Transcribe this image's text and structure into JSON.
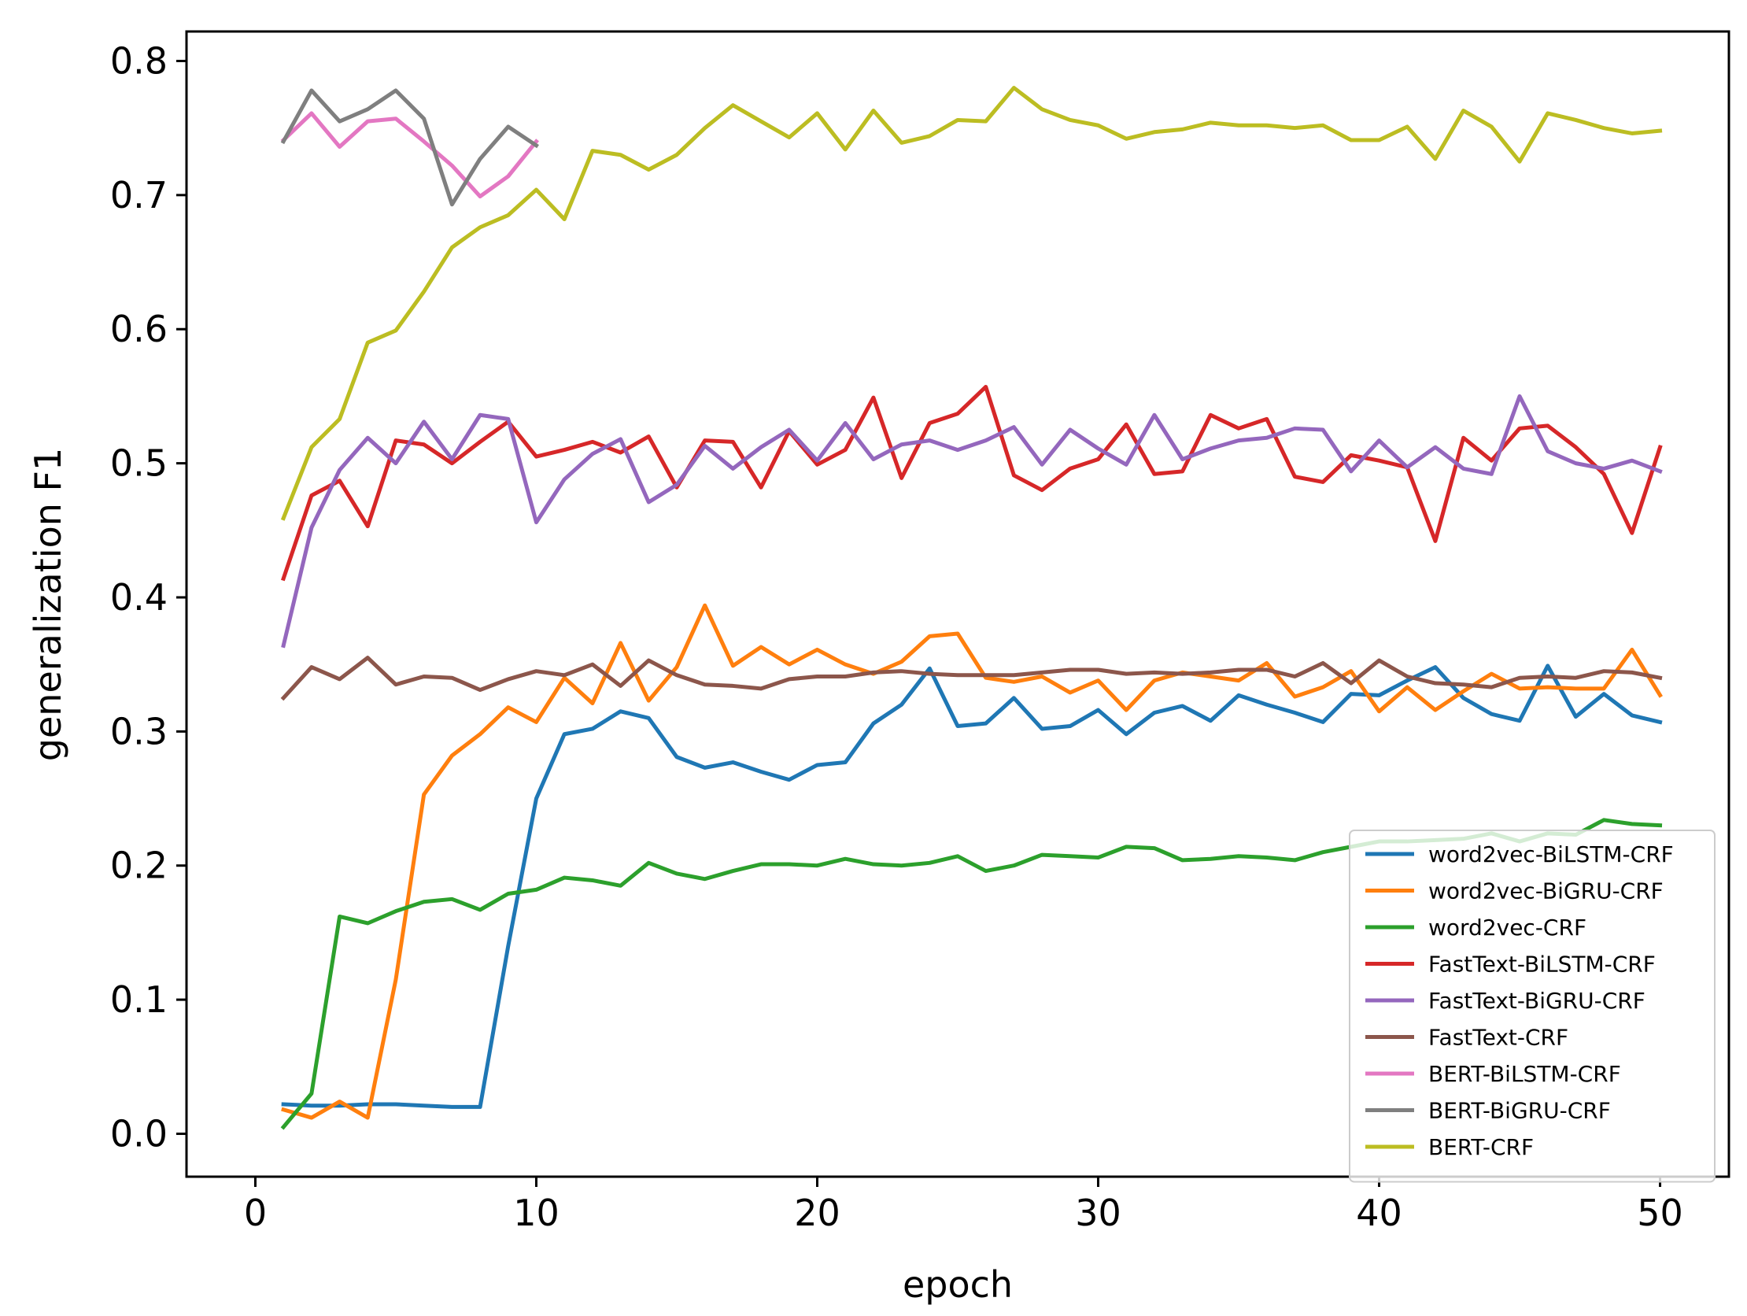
{
  "chart_data": {
    "type": "line",
    "xlabel": "epoch",
    "ylabel": "generalization F1",
    "xlim": [
      -2.45,
      52.45
    ],
    "ylim": [
      -0.032,
      0.822
    ],
    "xticks": [
      0,
      10,
      20,
      30,
      40,
      50
    ],
    "yticks": [
      0.0,
      0.1,
      0.2,
      0.3,
      0.4,
      0.5,
      0.6,
      0.7,
      0.8
    ],
    "xtick_labels": [
      "0",
      "10",
      "20",
      "30",
      "40",
      "50"
    ],
    "ytick_labels": [
      "0.0",
      "0.1",
      "0.2",
      "0.3",
      "0.4",
      "0.5",
      "0.6",
      "0.7",
      "0.8"
    ],
    "legend_position": "lower-right",
    "grid": false,
    "series": [
      {
        "name": "word2vec-BiLSTM-CRF",
        "color": "#1f77b4",
        "x_start": 1,
        "values": [
          0.022,
          0.021,
          0.021,
          0.022,
          0.022,
          0.021,
          0.02,
          0.02,
          0.14,
          0.25,
          0.298,
          0.302,
          0.315,
          0.31,
          0.281,
          0.273,
          0.277,
          0.27,
          0.264,
          0.275,
          0.277,
          0.306,
          0.32,
          0.347,
          0.304,
          0.306,
          0.325,
          0.302,
          0.304,
          0.316,
          0.298,
          0.314,
          0.319,
          0.308,
          0.327,
          0.32,
          0.314,
          0.307,
          0.328,
          0.327,
          0.338,
          0.348,
          0.325,
          0.313,
          0.308,
          0.349,
          0.311,
          0.328,
          0.312,
          0.307
        ]
      },
      {
        "name": "word2vec-BiGRU-CRF",
        "color": "#ff7f0e",
        "x_start": 1,
        "values": [
          0.018,
          0.012,
          0.024,
          0.012,
          0.115,
          0.253,
          0.282,
          0.298,
          0.318,
          0.307,
          0.34,
          0.321,
          0.366,
          0.323,
          0.348,
          0.394,
          0.349,
          0.363,
          0.35,
          0.361,
          0.35,
          0.343,
          0.352,
          0.371,
          0.373,
          0.34,
          0.337,
          0.341,
          0.329,
          0.338,
          0.316,
          0.338,
          0.344,
          0.341,
          0.338,
          0.351,
          0.326,
          0.333,
          0.345,
          0.315,
          0.333,
          0.316,
          0.33,
          0.343,
          0.332,
          0.333,
          0.332,
          0.332,
          0.361,
          0.327
        ]
      },
      {
        "name": "word2vec-CRF",
        "color": "#2ca02c",
        "x_start": 1,
        "values": [
          0.005,
          0.03,
          0.162,
          0.157,
          0.166,
          0.173,
          0.175,
          0.167,
          0.179,
          0.182,
          0.191,
          0.189,
          0.185,
          0.202,
          0.194,
          0.19,
          0.196,
          0.201,
          0.201,
          0.2,
          0.205,
          0.201,
          0.2,
          0.202,
          0.207,
          0.196,
          0.2,
          0.208,
          0.207,
          0.206,
          0.214,
          0.213,
          0.204,
          0.205,
          0.207,
          0.206,
          0.204,
          0.21,
          0.214,
          0.218,
          0.218,
          0.219,
          0.22,
          0.224,
          0.218,
          0.224,
          0.223,
          0.234,
          0.231,
          0.23
        ]
      },
      {
        "name": "FastText-BiLSTM-CRF",
        "color": "#d62728",
        "x_start": 1,
        "values": [
          0.414,
          0.476,
          0.487,
          0.453,
          0.517,
          0.514,
          0.5,
          0.516,
          0.531,
          0.505,
          0.51,
          0.516,
          0.508,
          0.52,
          0.482,
          0.517,
          0.516,
          0.482,
          0.524,
          0.499,
          0.51,
          0.549,
          0.489,
          0.53,
          0.537,
          0.557,
          0.491,
          0.48,
          0.496,
          0.503,
          0.529,
          0.492,
          0.494,
          0.536,
          0.526,
          0.533,
          0.49,
          0.486,
          0.506,
          0.502,
          0.497,
          0.442,
          0.519,
          0.502,
          0.526,
          0.528,
          0.512,
          0.492,
          0.448,
          0.512
        ]
      },
      {
        "name": "FastText-BiGRU-CRF",
        "color": "#9467bd",
        "x_start": 1,
        "values": [
          0.364,
          0.452,
          0.495,
          0.519,
          0.5,
          0.531,
          0.503,
          0.536,
          0.533,
          0.456,
          0.488,
          0.507,
          0.518,
          0.471,
          0.484,
          0.513,
          0.496,
          0.512,
          0.525,
          0.502,
          0.53,
          0.503,
          0.514,
          0.517,
          0.51,
          0.517,
          0.527,
          0.499,
          0.525,
          0.511,
          0.499,
          0.536,
          0.503,
          0.511,
          0.517,
          0.519,
          0.526,
          0.525,
          0.494,
          0.517,
          0.497,
          0.512,
          0.496,
          0.492,
          0.55,
          0.509,
          0.5,
          0.496,
          0.502,
          0.494
        ]
      },
      {
        "name": "FastText-CRF",
        "color": "#8c564b",
        "x_start": 1,
        "values": [
          0.325,
          0.348,
          0.339,
          0.355,
          0.335,
          0.341,
          0.34,
          0.331,
          0.339,
          0.345,
          0.342,
          0.35,
          0.334,
          0.353,
          0.342,
          0.335,
          0.334,
          0.332,
          0.339,
          0.341,
          0.341,
          0.344,
          0.345,
          0.343,
          0.342,
          0.342,
          0.342,
          0.344,
          0.346,
          0.346,
          0.343,
          0.344,
          0.343,
          0.344,
          0.346,
          0.346,
          0.341,
          0.351,
          0.336,
          0.353,
          0.341,
          0.336,
          0.335,
          0.333,
          0.34,
          0.341,
          0.34,
          0.345,
          0.344,
          0.34
        ]
      },
      {
        "name": "BERT-BiLSTM-CRF",
        "color": "#e377c2",
        "x_start": 1,
        "values": [
          0.741,
          0.761,
          0.736,
          0.755,
          0.757,
          0.74,
          0.722,
          0.699,
          0.714,
          0.74
        ]
      },
      {
        "name": "BERT-BiGRU-CRF",
        "color": "#7f7f7f",
        "x_start": 1,
        "values": [
          0.74,
          0.778,
          0.755,
          0.764,
          0.778,
          0.757,
          0.693,
          0.727,
          0.751,
          0.737
        ]
      },
      {
        "name": "BERT-CRF",
        "color": "#bcbd22",
        "x_start": 1,
        "values": [
          0.459,
          0.512,
          0.533,
          0.59,
          0.599,
          0.628,
          0.661,
          0.676,
          0.685,
          0.704,
          0.682,
          0.733,
          0.73,
          0.719,
          0.73,
          0.75,
          0.767,
          0.755,
          0.743,
          0.761,
          0.734,
          0.763,
          0.739,
          0.744,
          0.756,
          0.755,
          0.78,
          0.764,
          0.756,
          0.752,
          0.742,
          0.747,
          0.749,
          0.754,
          0.752,
          0.752,
          0.75,
          0.752,
          0.741,
          0.741,
          0.751,
          0.727,
          0.763,
          0.751,
          0.725,
          0.761,
          0.756,
          0.75,
          0.746,
          0.748
        ]
      }
    ]
  }
}
